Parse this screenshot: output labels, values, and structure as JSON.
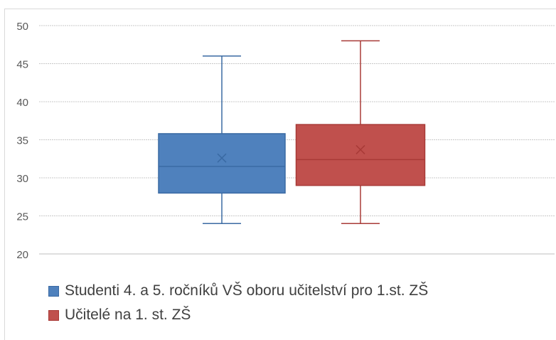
{
  "chart_data": {
    "type": "box",
    "ylim": [
      20,
      50
    ],
    "yticks": [
      "20",
      "25",
      "30",
      "35",
      "40",
      "45",
      "50"
    ],
    "grid": true,
    "legend_position": "bottom",
    "series": [
      {
        "name": "Studenti 4. a 5. ročníků VŠ oboru učitelství pro 1.st. ZŠ",
        "min": 24,
        "q1": 28,
        "median": 31.5,
        "q3": 35.8,
        "max": 46,
        "mean": 32.6,
        "color": "#4f81bd",
        "stroke": "#3a6aa3"
      },
      {
        "name": "Učitelé na 1. st. ZŠ",
        "min": 24,
        "q1": 29,
        "median": 32.4,
        "q3": 37,
        "max": 48,
        "mean": 33.7,
        "color": "#c0504d",
        "stroke": "#a83a37"
      }
    ]
  }
}
